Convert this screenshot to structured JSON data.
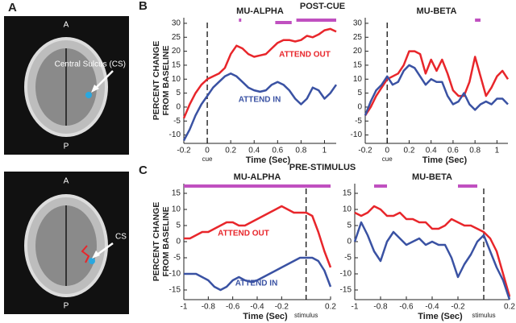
{
  "figure": {
    "panel_labels": [
      "A",
      "B",
      "C"
    ],
    "sections": [
      "POST-CUE",
      "PRE-STIMULUS"
    ],
    "mri": [
      {
        "top": "A",
        "bottom": "P",
        "label": "Central Sulcus (CS)"
      },
      {
        "top": "A",
        "bottom": "P",
        "label": "CS"
      }
    ]
  },
  "chart_data": [
    {
      "type": "line",
      "title": "MU-ALPHA",
      "xlabel": "Time (Sec)",
      "ylabel": [
        "PERCENT CHANGE",
        "FROM BASELINE"
      ],
      "marker": {
        "x": 0,
        "label": "cue"
      },
      "sig_color": "#c050c0",
      "sig": [
        [
          0.27,
          0.29
        ],
        [
          0.58,
          0.72
        ],
        [
          0.76,
          1.1
        ]
      ],
      "xlim": [
        -0.2,
        1.1
      ],
      "xticks": [
        -0.2,
        0,
        0.2,
        0.4,
        0.6,
        0.8,
        1
      ],
      "ylim": [
        -13,
        32
      ],
      "yticks": [
        -10,
        -5,
        0,
        5,
        10,
        15,
        20,
        25,
        30
      ],
      "x": [
        -0.2,
        -0.15,
        -0.1,
        -0.05,
        0,
        0.05,
        0.1,
        0.15,
        0.2,
        0.25,
        0.3,
        0.35,
        0.4,
        0.45,
        0.5,
        0.55,
        0.6,
        0.65,
        0.7,
        0.75,
        0.8,
        0.85,
        0.9,
        0.95,
        1,
        1.05,
        1.1
      ],
      "series": [
        {
          "name": "ATTEND OUT",
          "color": "#e8262b",
          "values": [
            -4,
            1,
            5,
            8,
            10,
            11,
            12,
            14,
            19,
            22,
            21,
            19,
            18,
            18.5,
            19,
            21,
            23,
            24,
            24,
            23.5,
            24,
            25.5,
            25,
            26,
            27.5,
            28,
            27
          ]
        },
        {
          "name": "ATTEND IN",
          "color": "#3a52a3",
          "values": [
            -12,
            -8,
            -3,
            1,
            4,
            7,
            9,
            11,
            12,
            11,
            9,
            7,
            6,
            5.5,
            6,
            8,
            9,
            8,
            6,
            3,
            1,
            3,
            7,
            6,
            3,
            5,
            8
          ]
        }
      ]
    },
    {
      "type": "line",
      "title": "MU-BETA",
      "xlabel": "Time (Sec)",
      "marker": {
        "x": 0,
        "label": "cue"
      },
      "sig_color": "#c050c0",
      "sig": [
        [
          0.8,
          0.85
        ]
      ],
      "xlim": [
        -0.2,
        1.1
      ],
      "xticks": [
        -0.2,
        0,
        0.2,
        0.4,
        0.6,
        0.8,
        1
      ],
      "ylim": [
        -13,
        32
      ],
      "yticks": [
        -10,
        -5,
        0,
        5,
        10,
        15,
        20,
        25,
        30
      ],
      "x": [
        -0.2,
        -0.15,
        -0.1,
        -0.05,
        0,
        0.05,
        0.1,
        0.15,
        0.2,
        0.25,
        0.3,
        0.35,
        0.4,
        0.45,
        0.5,
        0.55,
        0.6,
        0.65,
        0.7,
        0.75,
        0.8,
        0.85,
        0.9,
        0.95,
        1,
        1.05,
        1.1
      ],
      "series": [
        {
          "color": "#e8262b",
          "values": [
            -3,
            0,
            4,
            7,
            10,
            11,
            12,
            15,
            20,
            20,
            19,
            12,
            17,
            13,
            17,
            12,
            6,
            4,
            4,
            9,
            18,
            11,
            4,
            7,
            11,
            13,
            10
          ]
        },
        {
          "color": "#3a52a3",
          "values": [
            -3,
            2,
            6,
            8,
            11,
            8,
            9,
            13,
            15,
            14,
            11,
            8,
            10,
            9,
            9,
            4,
            1,
            2,
            5,
            1,
            -1,
            1,
            2,
            1,
            3,
            3,
            1
          ]
        }
      ]
    },
    {
      "type": "line",
      "title": "MU-ALPHA",
      "xlabel": "Time (Sec)",
      "ylabel": [
        "PERCENT CHANGE",
        "FROM BASELINE"
      ],
      "marker": {
        "x": 0,
        "label": "stimulus"
      },
      "sig_color": "#c050c0",
      "sig": [
        [
          -1,
          0.2
        ]
      ],
      "xlim": [
        -1,
        0.2
      ],
      "xticks": [
        -1,
        -0.8,
        -0.6,
        -0.4,
        -0.2,
        0.2
      ],
      "ylim": [
        -18,
        18
      ],
      "yticks": [
        -15,
        -10,
        -5,
        0,
        5,
        10,
        15
      ],
      "x": [
        -1,
        -0.95,
        -0.9,
        -0.85,
        -0.8,
        -0.75,
        -0.7,
        -0.65,
        -0.6,
        -0.55,
        -0.5,
        -0.45,
        -0.4,
        -0.35,
        -0.3,
        -0.25,
        -0.2,
        -0.15,
        -0.1,
        -0.05,
        0,
        0.05,
        0.1,
        0.15,
        0.2
      ],
      "series": [
        {
          "name": "ATTEND OUT",
          "color": "#e8262b",
          "values": [
            1,
            1,
            2,
            3,
            3,
            4,
            5,
            6,
            6,
            5,
            5,
            6,
            7,
            8,
            9,
            10,
            11,
            10,
            9,
            9,
            9,
            8,
            3,
            -3,
            -8
          ]
        },
        {
          "name": "ATTEND IN",
          "color": "#3a52a3",
          "values": [
            -10,
            -10,
            -10,
            -11,
            -12,
            -14,
            -15,
            -14,
            -12,
            -11,
            -12,
            -12.5,
            -12,
            -11,
            -10,
            -9,
            -8,
            -7,
            -6,
            -5,
            -5,
            -5,
            -6,
            -9,
            -14
          ]
        }
      ]
    },
    {
      "type": "line",
      "title": "MU-BETA",
      "xlabel": "Time (Sec)",
      "marker": {
        "x": 0,
        "label": "stimulus"
      },
      "sig_color": "#c050c0",
      "sig": [
        [
          -0.85,
          -0.75
        ],
        [
          -0.2,
          -0.05
        ]
      ],
      "xlim": [
        -1,
        0.2
      ],
      "xticks": [
        -1,
        -0.8,
        -0.6,
        -0.4,
        -0.2,
        0.2
      ],
      "ylim": [
        -18,
        18
      ],
      "yticks": [
        -15,
        -10,
        -5,
        0,
        5,
        10,
        15
      ],
      "x": [
        -1,
        -0.95,
        -0.9,
        -0.85,
        -0.8,
        -0.75,
        -0.7,
        -0.65,
        -0.6,
        -0.55,
        -0.5,
        -0.45,
        -0.4,
        -0.35,
        -0.3,
        -0.25,
        -0.2,
        -0.15,
        -0.1,
        -0.05,
        0,
        0.05,
        0.1,
        0.15,
        0.2
      ],
      "series": [
        {
          "color": "#e8262b",
          "values": [
            9,
            8,
            9,
            11,
            10,
            8,
            8,
            9,
            7,
            7,
            6,
            6,
            4,
            4,
            5,
            7,
            6,
            5,
            5,
            4,
            3,
            1,
            -3,
            -10,
            -17
          ]
        },
        {
          "color": "#3a52a3",
          "values": [
            0,
            6,
            2,
            -3,
            -6,
            0,
            3,
            1,
            -1,
            0,
            1,
            -1,
            0,
            -1,
            -1,
            -5,
            -11,
            -7,
            -4,
            0,
            2,
            -3,
            -8,
            -12,
            -18
          ]
        }
      ]
    }
  ]
}
